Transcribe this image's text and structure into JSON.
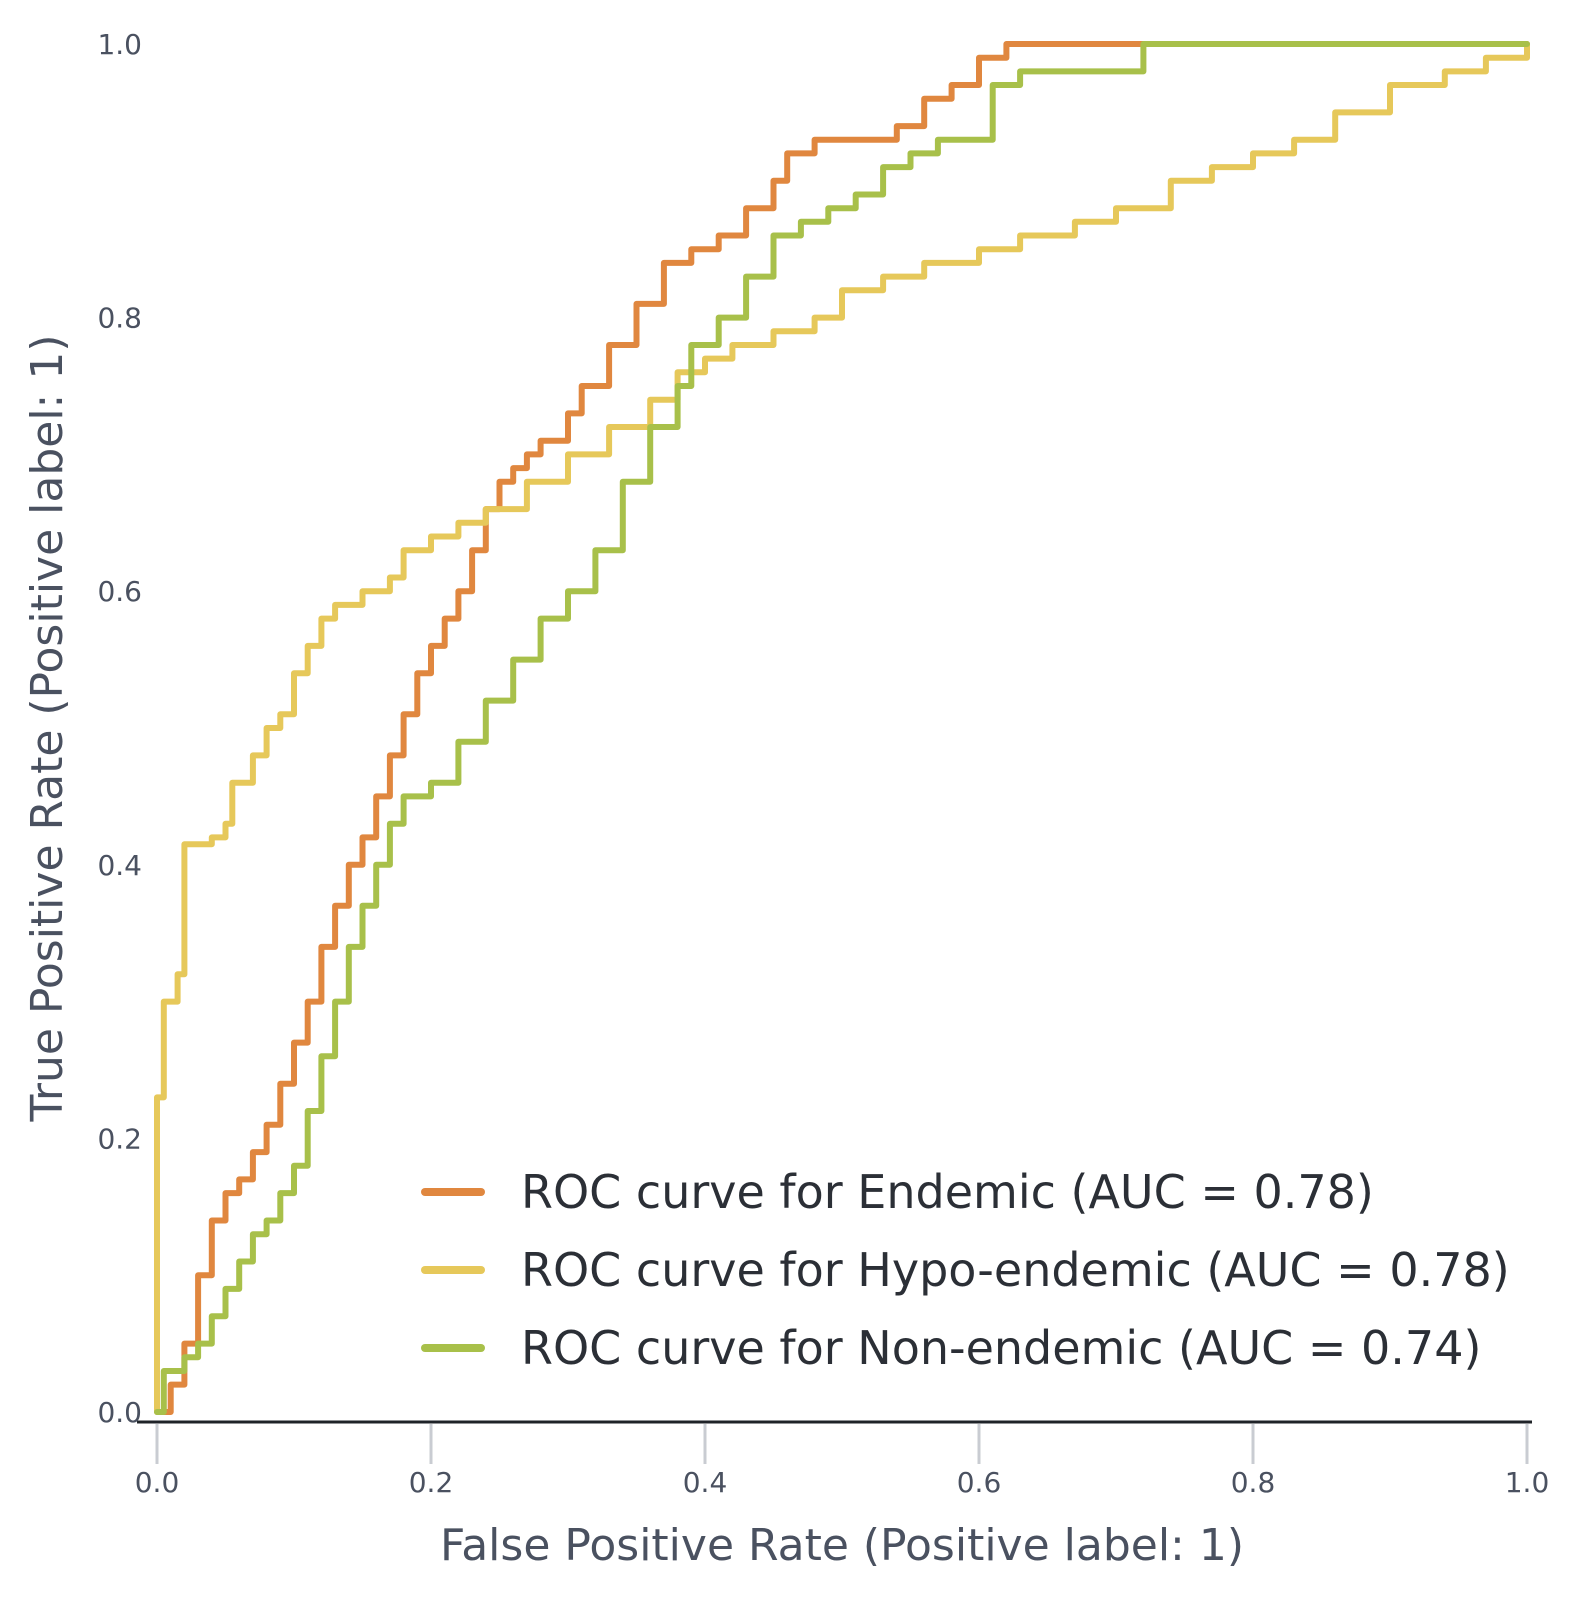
{
  "chart_data": {
    "type": "line",
    "title": "",
    "xlabel": "False Positive Rate (Positive label: 1)",
    "ylabel": "True Positive Rate (Positive label: 1)",
    "xlim": [
      0,
      1
    ],
    "ylim": [
      0,
      1
    ],
    "x_ticks": [
      0.0,
      0.2,
      0.4,
      0.6,
      0.8,
      1.0
    ],
    "y_ticks": [
      0.0,
      0.2,
      0.4,
      0.6,
      0.8,
      1.0
    ],
    "x_tick_labels": [
      "0.0",
      "0.2",
      "0.4",
      "0.6",
      "0.8",
      "1.0"
    ],
    "y_tick_labels": [
      "0.0",
      "0.2",
      "0.4",
      "0.6",
      "0.8",
      "1.0"
    ],
    "grid": false,
    "legend_position": "bottom-right",
    "series": [
      {
        "name": "ROC curve for Endemic (AUC = 0.78)",
        "color": "#E0873F",
        "points": [
          [
            0,
            0
          ],
          [
            0.01,
            0.02
          ],
          [
            0.02,
            0.05
          ],
          [
            0.03,
            0.1
          ],
          [
            0.04,
            0.14
          ],
          [
            0.05,
            0.16
          ],
          [
            0.06,
            0.17
          ],
          [
            0.07,
            0.19
          ],
          [
            0.08,
            0.21
          ],
          [
            0.09,
            0.24
          ],
          [
            0.1,
            0.27
          ],
          [
            0.11,
            0.3
          ],
          [
            0.12,
            0.34
          ],
          [
            0.13,
            0.37
          ],
          [
            0.14,
            0.4
          ],
          [
            0.15,
            0.42
          ],
          [
            0.16,
            0.45
          ],
          [
            0.17,
            0.48
          ],
          [
            0.18,
            0.51
          ],
          [
            0.19,
            0.54
          ],
          [
            0.2,
            0.56
          ],
          [
            0.21,
            0.58
          ],
          [
            0.22,
            0.6
          ],
          [
            0.23,
            0.63
          ],
          [
            0.24,
            0.66
          ],
          [
            0.25,
            0.68
          ],
          [
            0.26,
            0.69
          ],
          [
            0.27,
            0.7
          ],
          [
            0.28,
            0.71
          ],
          [
            0.3,
            0.73
          ],
          [
            0.31,
            0.75
          ],
          [
            0.33,
            0.78
          ],
          [
            0.35,
            0.81
          ],
          [
            0.37,
            0.84
          ],
          [
            0.39,
            0.85
          ],
          [
            0.41,
            0.86
          ],
          [
            0.43,
            0.88
          ],
          [
            0.45,
            0.9
          ],
          [
            0.46,
            0.92
          ],
          [
            0.48,
            0.93
          ],
          [
            0.5,
            0.93
          ],
          [
            0.52,
            0.93
          ],
          [
            0.54,
            0.94
          ],
          [
            0.56,
            0.96
          ],
          [
            0.58,
            0.97
          ],
          [
            0.6,
            0.99
          ],
          [
            0.62,
            1.0
          ],
          [
            0.7,
            1.0
          ],
          [
            0.8,
            1.0
          ],
          [
            1.0,
            1.0
          ]
        ]
      },
      {
        "name": "ROC curve for Hypo-endemic (AUC = 0.78)",
        "color": "#E6C85A",
        "points": [
          [
            0,
            0
          ],
          [
            0,
            0.23
          ],
          [
            0.005,
            0.3
          ],
          [
            0.015,
            0.32
          ],
          [
            0.02,
            0.4
          ],
          [
            0.02,
            0.415
          ],
          [
            0.04,
            0.42
          ],
          [
            0.05,
            0.43
          ],
          [
            0.055,
            0.46
          ],
          [
            0.07,
            0.48
          ],
          [
            0.08,
            0.5
          ],
          [
            0.09,
            0.51
          ],
          [
            0.1,
            0.54
          ],
          [
            0.11,
            0.56
          ],
          [
            0.12,
            0.58
          ],
          [
            0.13,
            0.59
          ],
          [
            0.15,
            0.6
          ],
          [
            0.17,
            0.61
          ],
          [
            0.18,
            0.63
          ],
          [
            0.2,
            0.64
          ],
          [
            0.22,
            0.65
          ],
          [
            0.24,
            0.66
          ],
          [
            0.27,
            0.68
          ],
          [
            0.3,
            0.7
          ],
          [
            0.33,
            0.72
          ],
          [
            0.36,
            0.74
          ],
          [
            0.38,
            0.76
          ],
          [
            0.4,
            0.77
          ],
          [
            0.42,
            0.78
          ],
          [
            0.45,
            0.79
          ],
          [
            0.48,
            0.8
          ],
          [
            0.5,
            0.82
          ],
          [
            0.53,
            0.83
          ],
          [
            0.56,
            0.84
          ],
          [
            0.6,
            0.85
          ],
          [
            0.63,
            0.86
          ],
          [
            0.67,
            0.87
          ],
          [
            0.7,
            0.88
          ],
          [
            0.74,
            0.9
          ],
          [
            0.77,
            0.91
          ],
          [
            0.8,
            0.92
          ],
          [
            0.83,
            0.93
          ],
          [
            0.86,
            0.95
          ],
          [
            0.9,
            0.97
          ],
          [
            0.94,
            0.98
          ],
          [
            0.97,
            0.99
          ],
          [
            1.0,
            1.0
          ]
        ]
      },
      {
        "name": "ROC curve for Non-endemic (AUC = 0.74)",
        "color": "#A8C04A",
        "points": [
          [
            0,
            0
          ],
          [
            0.005,
            0.03
          ],
          [
            0.02,
            0.04
          ],
          [
            0.03,
            0.05
          ],
          [
            0.04,
            0.07
          ],
          [
            0.05,
            0.09
          ],
          [
            0.06,
            0.11
          ],
          [
            0.07,
            0.13
          ],
          [
            0.08,
            0.14
          ],
          [
            0.09,
            0.16
          ],
          [
            0.1,
            0.18
          ],
          [
            0.11,
            0.22
          ],
          [
            0.12,
            0.26
          ],
          [
            0.13,
            0.3
          ],
          [
            0.14,
            0.34
          ],
          [
            0.15,
            0.37
          ],
          [
            0.16,
            0.4
          ],
          [
            0.17,
            0.43
          ],
          [
            0.18,
            0.45
          ],
          [
            0.2,
            0.46
          ],
          [
            0.22,
            0.49
          ],
          [
            0.24,
            0.52
          ],
          [
            0.26,
            0.55
          ],
          [
            0.28,
            0.58
          ],
          [
            0.3,
            0.6
          ],
          [
            0.32,
            0.63
          ],
          [
            0.34,
            0.68
          ],
          [
            0.36,
            0.72
          ],
          [
            0.38,
            0.75
          ],
          [
            0.39,
            0.78
          ],
          [
            0.41,
            0.8
          ],
          [
            0.43,
            0.83
          ],
          [
            0.45,
            0.86
          ],
          [
            0.47,
            0.87
          ],
          [
            0.49,
            0.88
          ],
          [
            0.51,
            0.89
          ],
          [
            0.53,
            0.91
          ],
          [
            0.55,
            0.92
          ],
          [
            0.57,
            0.93
          ],
          [
            0.6,
            0.93
          ],
          [
            0.61,
            0.97
          ],
          [
            0.63,
            0.98
          ],
          [
            0.7,
            0.98
          ],
          [
            0.72,
            1.0
          ],
          [
            0.8,
            1.0
          ],
          [
            1.0,
            1.0
          ]
        ]
      }
    ]
  }
}
